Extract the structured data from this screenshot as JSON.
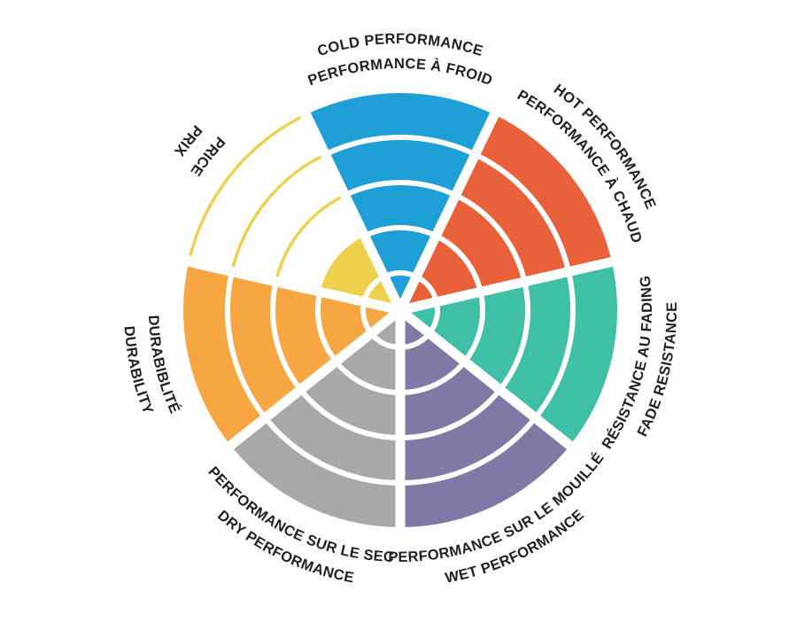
{
  "background": "#FFFFFF",
  "text_color": "#231F20",
  "chart_data": {
    "type": "polar-sector-rating-wheel",
    "title": "",
    "scale_max": 5,
    "ring_count": 5,
    "legend": false,
    "segments": [
      {
        "id": "cold-performance",
        "lines": [
          "COLD PERFORMANCE",
          "PERFORMANCE À FROID"
        ],
        "value": 5,
        "color": "#1E9FD6"
      },
      {
        "id": "hot-performance",
        "lines": [
          "HOT PERFORMANCE",
          "PERFORMANCE À CHAUD"
        ],
        "value": 5,
        "color": "#E8613A"
      },
      {
        "id": "fade-resistance",
        "lines": [
          "RÉSISTANCE AU FADING",
          "FADE RESISTANCE"
        ],
        "value": 5,
        "color": "#3FBFA6"
      },
      {
        "id": "wet-performance",
        "lines": [
          "PERFORMANCE SUR LE MOUILLÉ",
          "WET PERFORMANCE"
        ],
        "value": 5,
        "color": "#8078A5"
      },
      {
        "id": "dry-performance",
        "lines": [
          "PERFORMANCE SUR LE SEC",
          "DRY PERFORMANCE"
        ],
        "value": 5,
        "color": "#A8A8A8"
      },
      {
        "id": "durability",
        "lines": [
          "DURABIBLITÉ",
          "DURABILITY"
        ],
        "value": 5,
        "color": "#F7A742"
      },
      {
        "id": "price",
        "lines": [
          "PRICE",
          "PRIX"
        ],
        "value": 2,
        "color": "#EFD04C"
      }
    ]
  }
}
